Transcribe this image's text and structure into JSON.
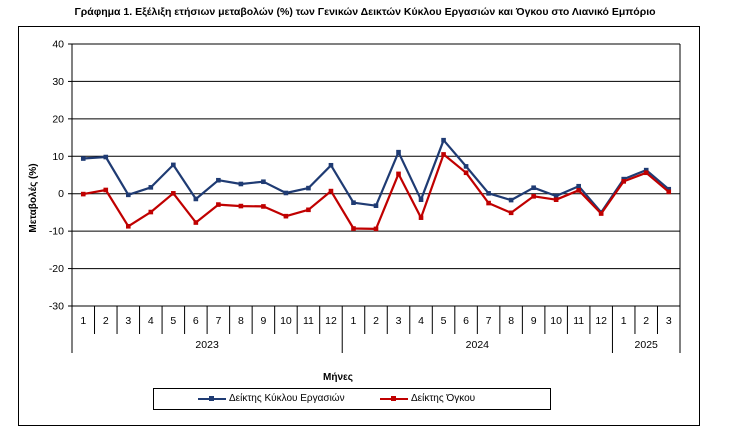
{
  "chart_data": {
    "type": "line",
    "title": "Γράφημα 1. Εξέλιξη ετήσιων μεταβολών (%) των Γενικών Δεικτών Κύκλου Εργασιών και Όγκου στο Λιανικό Εμπόριο",
    "xlabel": "Μήνες",
    "ylabel": "Μεταβολές (%)",
    "ylim": [
      -30,
      40
    ],
    "yticks": [
      -30,
      -20,
      -10,
      0,
      10,
      20,
      30,
      40
    ],
    "grid": true,
    "legend_position": "bottom",
    "categories": [
      "1",
      "2",
      "3",
      "4",
      "5",
      "6",
      "7",
      "8",
      "9",
      "10",
      "11",
      "12",
      "1",
      "2",
      "3",
      "4",
      "5",
      "6",
      "7",
      "8",
      "9",
      "10",
      "11",
      "12",
      "1",
      "2",
      "3"
    ],
    "year_groups": [
      {
        "label": "2023",
        "months": 12
      },
      {
        "label": "2024",
        "months": 12
      },
      {
        "label": "2025",
        "months": 3
      }
    ],
    "series": [
      {
        "name": "Δείκτης Κύκλου Εργασιών",
        "color": "#1F3B73",
        "values": [
          9.4,
          9.8,
          -0.3,
          1.7,
          7.7,
          -1.4,
          3.6,
          2.6,
          3.2,
          0.2,
          1.5,
          7.6,
          -2.4,
          -3.2,
          11.1,
          -1.6,
          14.3,
          7.3,
          0.1,
          -1.7,
          1.6,
          -0.6,
          2.0,
          -5.0,
          3.9,
          6.3,
          1.2
        ]
      },
      {
        "name": "Δείκτης Όγκου",
        "color": "#C00000",
        "values": [
          -0.1,
          1.0,
          -8.7,
          -4.9,
          0.1,
          -7.7,
          -2.9,
          -3.3,
          -3.4,
          -6.0,
          -4.3,
          0.7,
          -9.3,
          -9.4,
          5.3,
          -6.4,
          10.5,
          5.6,
          -2.5,
          -5.1,
          -0.7,
          -1.6,
          0.9,
          -5.3,
          3.3,
          5.6,
          0.5
        ]
      }
    ]
  }
}
